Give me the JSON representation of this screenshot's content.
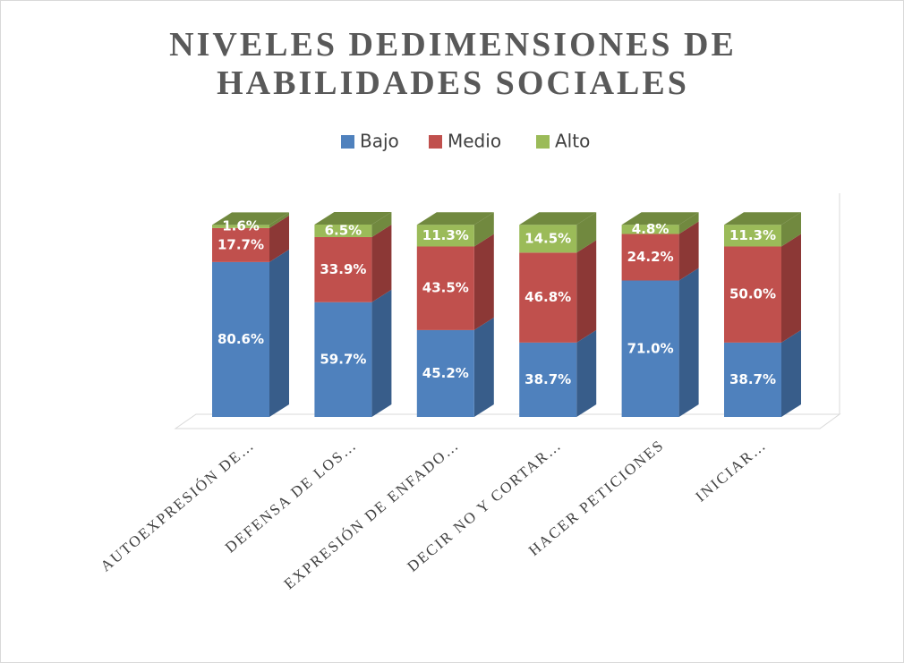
{
  "chart_data": {
    "type": "bar3d_stacked",
    "title": "NIVELES DEDIMENSIONES DE HABILIDADES SOCIALES",
    "categories": [
      "AUTOEXPRESIÓN DE…",
      "DEFENSA DE LOS…",
      "EXPRESIÓN DE ENFADO…",
      "DECIR NO Y CORTAR…",
      "HACER PETICIONES",
      "INICIAR…"
    ],
    "series": [
      {
        "name": "Bajo",
        "color": "#4f81bd",
        "side": "#385d8a",
        "values": [
          80.6,
          59.7,
          45.2,
          38.7,
          71.0,
          38.7
        ],
        "value_labels": [
          "80.6%",
          "59.7%",
          "45.2%",
          "38.7%",
          "71.0%",
          "38.7%"
        ]
      },
      {
        "name": "Medio",
        "color": "#c0504d",
        "side": "#8c3836",
        "values": [
          17.7,
          33.9,
          43.5,
          46.8,
          24.2,
          50.0
        ],
        "value_labels": [
          "17.7%",
          "33.9%",
          "43.5%",
          "46.8%",
          "24.2%",
          "50.0%"
        ]
      },
      {
        "name": "Alto",
        "color": "#9bbb59",
        "side": "#71893f",
        "values": [
          1.6,
          6.5,
          11.3,
          14.5,
          4.8,
          11.3
        ],
        "value_labels": [
          "1.6%",
          "6.5%",
          "11.3%",
          "14.5%",
          "4.8%",
          "11.3%"
        ]
      }
    ],
    "legend": "top"
  }
}
